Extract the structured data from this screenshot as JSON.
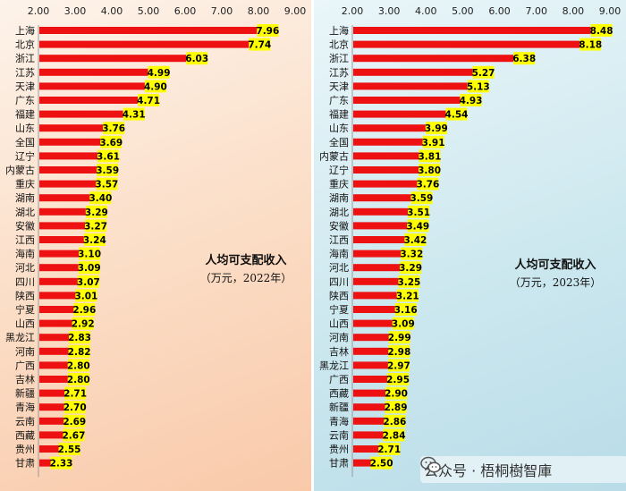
{
  "watermark": {
    "text": "公众号 · 梧桐樹智庫",
    "icon": "wechat-icon"
  },
  "colors": {
    "bar": "#ee1111",
    "label_bg": "#ffff00",
    "axis_text": "#222222"
  },
  "chart_data": [
    {
      "type": "bar",
      "orientation": "horizontal",
      "title": "人均可支配收入",
      "subtitle": "（万元，2022年）",
      "xlim": [
        2.0,
        9.0
      ],
      "x_ticks": [
        "2.00",
        "3.00",
        "4.00",
        "5.00",
        "6.00",
        "7.00",
        "8.00",
        "9.00"
      ],
      "grid": false,
      "categories": [
        "上海",
        "北京",
        "浙江",
        "江苏",
        "天津",
        "广东",
        "福建",
        "山东",
        "全国",
        "辽宁",
        "内蒙古",
        "重庆",
        "湖南",
        "湖北",
        "安徽",
        "江西",
        "海南",
        "河北",
        "四川",
        "陕西",
        "宁夏",
        "山西",
        "黑龙江",
        "河南",
        "广西",
        "吉林",
        "新疆",
        "青海",
        "云南",
        "西藏",
        "贵州",
        "甘肃"
      ],
      "values": [
        7.96,
        7.74,
        6.03,
        4.99,
        4.9,
        4.71,
        4.31,
        3.76,
        3.69,
        3.61,
        3.59,
        3.57,
        3.4,
        3.29,
        3.27,
        3.24,
        3.1,
        3.09,
        3.07,
        3.01,
        2.96,
        2.92,
        2.83,
        2.82,
        2.8,
        2.8,
        2.71,
        2.7,
        2.69,
        2.67,
        2.55,
        2.33
      ],
      "value_labels": [
        "7.96",
        "7.74",
        "6.03",
        "4.99",
        "4.90",
        "4.71",
        "4.31",
        "3.76",
        "3.69",
        "3.61",
        "3.59",
        "3.57",
        "3.40",
        "3.29",
        "3.27",
        "3.24",
        "3.10",
        "3.09",
        "3.07",
        "3.01",
        "2.96",
        "2.92",
        "2.83",
        "2.82",
        "2.80",
        "2.80",
        "2.71",
        "2.70",
        "2.69",
        "2.67",
        "2.55",
        "2.33"
      ]
    },
    {
      "type": "bar",
      "orientation": "horizontal",
      "title": "人均可支配收入",
      "subtitle": "（万元，2023年）",
      "xlim": [
        2.0,
        9.0
      ],
      "x_ticks": [
        "2.00",
        "3.00",
        "4.00",
        "5.00",
        "6.00",
        "7.00",
        "8.00",
        "9.00"
      ],
      "grid": false,
      "categories": [
        "上海",
        "北京",
        "浙江",
        "江苏",
        "天津",
        "广东",
        "福建",
        "山东",
        "全国",
        "内蒙古",
        "辽宁",
        "重庆",
        "湖南",
        "湖北",
        "安徽",
        "江西",
        "海南",
        "河北",
        "四川",
        "陕西",
        "宁夏",
        "山西",
        "河南",
        "吉林",
        "黑龙江",
        "广西",
        "西藏",
        "新疆",
        "青海",
        "云南",
        "贵州",
        "甘肃"
      ],
      "values": [
        8.48,
        8.18,
        6.38,
        5.27,
        5.13,
        4.93,
        4.54,
        3.99,
        3.91,
        3.81,
        3.8,
        3.76,
        3.59,
        3.51,
        3.49,
        3.42,
        3.32,
        3.29,
        3.25,
        3.21,
        3.16,
        3.09,
        2.99,
        2.98,
        2.97,
        2.95,
        2.9,
        2.89,
        2.86,
        2.84,
        2.71,
        2.5
      ],
      "value_labels": [
        "8.48",
        "8.18",
        "6.38",
        "5.27",
        "5.13",
        "4.93",
        "4.54",
        "3.99",
        "3.91",
        "3.81",
        "3.80",
        "3.76",
        "3.59",
        "3.51",
        "3.49",
        "3.42",
        "3.32",
        "3.29",
        "3.25",
        "3.21",
        "3.16",
        "3.09",
        "2.99",
        "2.98",
        "2.97",
        "2.95",
        "2.90",
        "2.89",
        "2.86",
        "2.84",
        "2.71",
        "2.50"
      ]
    }
  ]
}
